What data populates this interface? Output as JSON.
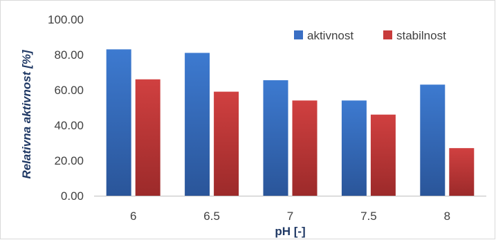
{
  "chart_data": {
    "type": "bar",
    "categories": [
      "6",
      "6.5",
      "7",
      "7.5",
      "8"
    ],
    "series": [
      {
        "name": "aktivnost",
        "values": [
          83.0,
          81.0,
          65.5,
          54.0,
          63.0
        ]
      },
      {
        "name": "stabilnost",
        "values": [
          66.0,
          59.0,
          54.0,
          46.0,
          27.0
        ]
      }
    ],
    "title": "",
    "xlabel": "pH [-]",
    "ylabel": "Relativna aktivnost [%]",
    "ylim": [
      0,
      100
    ],
    "yticks": [
      "0.00",
      "20.00",
      "40.00",
      "60.00",
      "80.00",
      "100.00"
    ],
    "grid": false,
    "legend_position": "top-right",
    "colors": {
      "aktivnost": "#3a6fc4",
      "stabilnost": "#c83c3c"
    }
  }
}
